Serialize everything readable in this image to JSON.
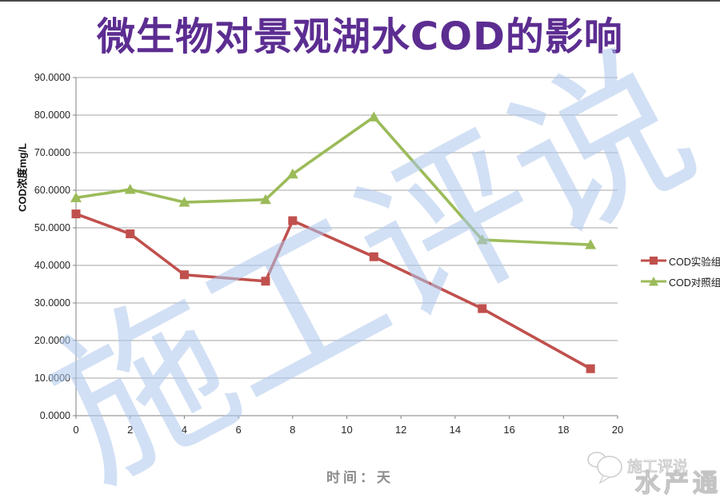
{
  "title": "微生物对景观湖水COD的影响",
  "watermark": "施工评说",
  "footer": {
    "brand_text": "施工评说",
    "overlay_text": "水产通"
  },
  "colors": {
    "title": "#5c2d91",
    "experimental_series": "#C0504D",
    "control_series": "#9BBB59",
    "gridline": "#A6A6A6",
    "axis": "#808080",
    "watermark_blue": "#adc7ec",
    "top_border": "#4a4a4a",
    "x_axis_title_gray": "#8c8c8c"
  },
  "chart_data": {
    "type": "line",
    "title": "微生物对景观湖水COD的影响",
    "xlabel": "时间：天",
    "ylabel": "COD浓度mg/L",
    "xlim": [
      0,
      20
    ],
    "ylim": [
      0,
      90
    ],
    "grid": true,
    "legend_position": "right",
    "x_ticks": [
      "0",
      "2",
      "4",
      "6",
      "8",
      "10",
      "12",
      "14",
      "16",
      "18",
      "20"
    ],
    "y_ticks": [
      "90.0000",
      "80.0000",
      "70.0000",
      "60.0000",
      "50.0000",
      "40.0000",
      "30.0000",
      "20.0000",
      "10.0000",
      "0.0000"
    ],
    "x": [
      0,
      2,
      4,
      7,
      8,
      11,
      15,
      19
    ],
    "series": [
      {
        "name": "COD实验组",
        "marker": "square",
        "color": "#C0504D",
        "values": [
          53.7,
          48.4,
          37.5,
          35.8,
          51.9,
          42.3,
          28.5,
          12.5
        ]
      },
      {
        "name": "COD对照组",
        "marker": "triangle",
        "color": "#9BBB59",
        "values": [
          58.0,
          60.2,
          56.8,
          57.5,
          64.3,
          79.5,
          46.8,
          45.5
        ]
      }
    ]
  }
}
